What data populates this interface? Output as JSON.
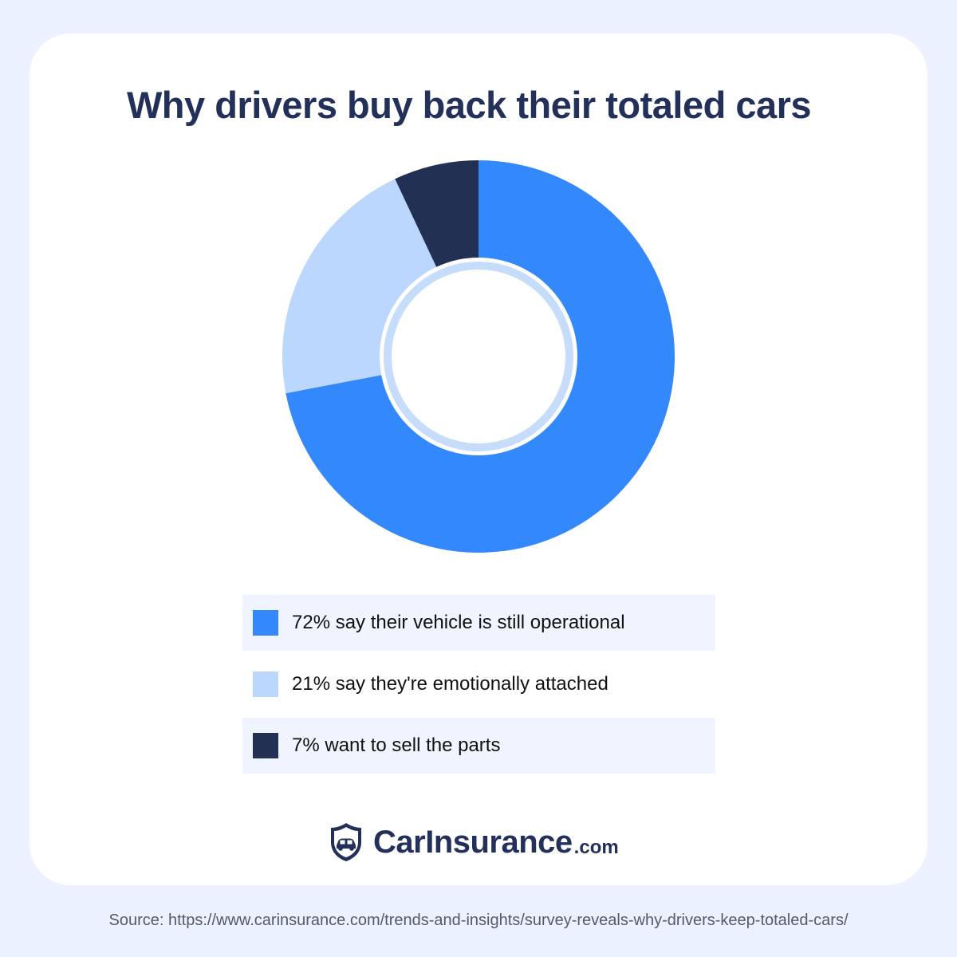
{
  "title": "Why drivers buy back their totaled cars",
  "chart_data": {
    "type": "pie",
    "title": "Why drivers buy back their totaled cars",
    "categories": [
      "72% say their vehicle is still operational",
      "21% say they're emotionally attached",
      "7% want to sell the parts"
    ],
    "values": [
      72,
      21,
      7
    ],
    "colors": [
      "#3388fc",
      "#bcd7fd",
      "#223054"
    ],
    "legend_position": "bottom"
  },
  "legend": [
    {
      "label": "72% say their vehicle is still operational",
      "color": "#3388fc"
    },
    {
      "label": "21% say they're emotionally attached",
      "color": "#bcd7fd"
    },
    {
      "label": "7% want to sell the parts",
      "color": "#223054"
    }
  ],
  "brand": {
    "name": "CarInsurance",
    "tld": ".com",
    "icon": "shield-car-icon"
  },
  "source": "Source: https://www.carinsurance.com/trends-and-insights/survey-reveals-why-drivers-keep-totaled-cars/",
  "colors": {
    "background": "#ebf2fd",
    "card": "#ffffff",
    "navy": "#22305a",
    "accent_blue": "#3388fc",
    "light_blue": "#bcd7fd",
    "ring": "#c6dcfb"
  }
}
